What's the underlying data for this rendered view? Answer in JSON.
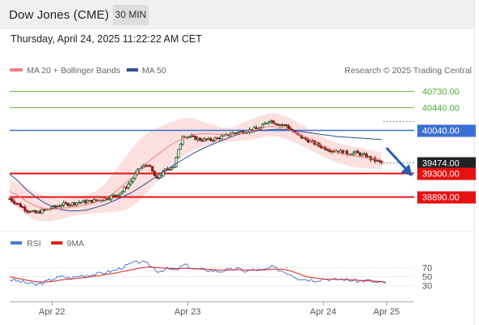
{
  "header": {
    "title": "Dow Jones (CME)",
    "interval": "30 MIN",
    "timestamp": "Thursday, April 24, 2025 11:22:22 AM CET"
  },
  "legend": {
    "ma20": "MA 20 + Bollinger Bands",
    "ma50": "MA 50",
    "credit": "Research © 2025 Trading Central",
    "rsi": "RSI",
    "rsi_ma": "9MA"
  },
  "colors": {
    "ma20": "#f08080",
    "bollinger_fill": "#fbd5d5",
    "ma50": "#2f4f8f",
    "target": "#66bb44",
    "pivot": "#3b6fd4",
    "support": "#e81010",
    "current": "#222222",
    "rsi": "#4a78d0",
    "rsi_ma": "#e02020",
    "candle_up": "#1a5c2a",
    "candle_down": "#8b1a1a",
    "arrow": "#2a5db0"
  },
  "chart_data": [
    {
      "type": "candlestick",
      "x_ticks": [
        "Apr 22",
        "Apr 23",
        "Apr 24",
        "Apr 25"
      ],
      "ylim": [
        38350,
        40950
      ],
      "close_path": [
        38850,
        38750,
        38650,
        38600,
        38650,
        38700,
        38750,
        38760,
        38790,
        38800,
        38820,
        38850,
        38900,
        38980,
        39150,
        39380,
        39450,
        39180,
        39350,
        39420,
        39950,
        39920,
        39880,
        39870,
        39900,
        39950,
        40000,
        40020,
        40050,
        40080,
        40220,
        40150,
        40120,
        39980,
        39900,
        39830,
        39760,
        39700,
        39680,
        39640,
        39650,
        39600,
        39530,
        39474
      ],
      "bollinger_upper": [
        39180,
        39120,
        39040,
        38960,
        38900,
        38870,
        38850,
        38860,
        38880,
        38920,
        38990,
        39100,
        39300,
        39500,
        39700,
        39880,
        40000,
        40080,
        40150,
        40200,
        40250,
        40260,
        40210,
        40160,
        40110,
        40080,
        40100,
        40180,
        40240,
        40290,
        40340,
        40330,
        40280,
        40200,
        40120,
        40020,
        39940,
        39870,
        39820,
        39780,
        39750,
        39720,
        39690,
        39660
      ],
      "bollinger_lower": [
        38780,
        38680,
        38560,
        38470,
        38450,
        38470,
        38500,
        38540,
        38570,
        38590,
        38600,
        38610,
        38620,
        38640,
        38700,
        38820,
        38980,
        39150,
        39300,
        39450,
        39580,
        39680,
        39740,
        39790,
        39820,
        39840,
        39850,
        39860,
        39880,
        39910,
        39940,
        39930,
        39890,
        39820,
        39750,
        39680,
        39600,
        39530,
        39470,
        39430,
        39400,
        39380,
        39370,
        39360
      ],
      "ma20": [
        38980,
        38900,
        38800,
        38720,
        38680,
        38670,
        38680,
        38700,
        38720,
        38750,
        38790,
        38850,
        38950,
        39070,
        39200,
        39350,
        39490,
        39610,
        39720,
        39820,
        39900,
        39960,
        39980,
        39980,
        39970,
        39960,
        39970,
        39990,
        40030,
        40070,
        40110,
        40100,
        40070,
        40000,
        39930,
        39850,
        39780,
        39710,
        39660,
        39620,
        39590,
        39570,
        39550,
        39520
      ],
      "ma50": [
        39280,
        39150,
        39000,
        38880,
        38780,
        38710,
        38660,
        38640,
        38640,
        38660,
        38700,
        38750,
        38810,
        38880,
        38950,
        39040,
        39140,
        39240,
        39340,
        39440,
        39530,
        39620,
        39700,
        39770,
        39830,
        39890,
        39950,
        39990,
        40020,
        40040,
        40050,
        40060,
        40050,
        40030,
        40010,
        39990,
        39970,
        39950,
        39930,
        39920,
        39910,
        39900,
        39890,
        39880
      ],
      "levels": [
        {
          "label": "40730.00",
          "value": 40730,
          "kind": "target"
        },
        {
          "label": "40440.00",
          "value": 40440,
          "kind": "target"
        },
        {
          "label": "40040.00",
          "value": 40040,
          "kind": "pivot"
        },
        {
          "label": "39474.00",
          "value": 39474,
          "kind": "current"
        },
        {
          "label": "39300.00",
          "value": 39300,
          "kind": "support"
        },
        {
          "label": "38890.00",
          "value": 38890,
          "kind": "support"
        }
      ]
    },
    {
      "type": "line",
      "name": "RSI",
      "y_ticks": [
        "70",
        "50",
        "30"
      ],
      "y_tick_values": [
        70,
        50,
        30
      ],
      "ylim": [
        0,
        100
      ],
      "rsi": [
        42,
        38,
        34,
        30,
        36,
        44,
        48,
        45,
        50,
        52,
        54,
        58,
        62,
        70,
        78,
        82,
        74,
        60,
        66,
        62,
        75,
        66,
        64,
        62,
        60,
        63,
        66,
        60,
        64,
        62,
        70,
        62,
        55,
        45,
        42,
        40,
        44,
        41,
        43,
        40,
        38,
        40,
        35,
        34
      ],
      "rsi_ma": [
        48,
        44,
        40,
        37,
        36,
        38,
        41,
        43,
        45,
        47,
        50,
        53,
        56,
        60,
        64,
        68,
        70,
        68,
        67,
        66,
        67,
        66,
        65,
        64,
        63,
        63,
        64,
        63,
        63,
        63,
        65,
        65,
        62,
        55,
        48,
        45,
        43,
        42,
        42,
        41,
        40,
        39,
        38,
        36
      ]
    }
  ]
}
